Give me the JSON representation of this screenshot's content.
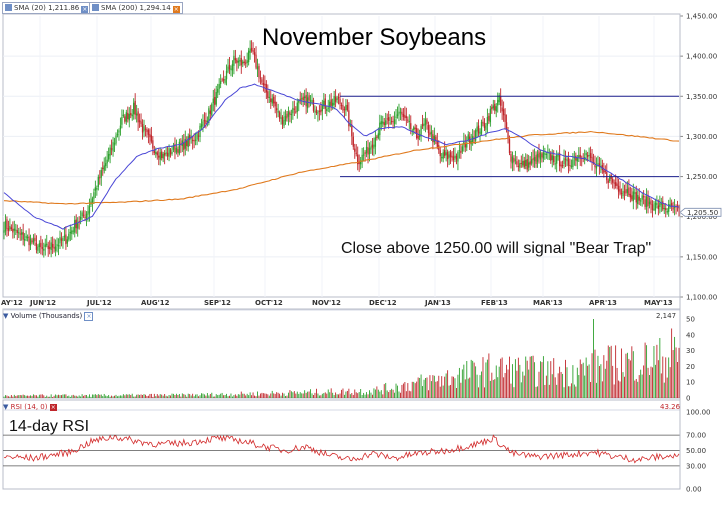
{
  "main_legend": {
    "sma20_label": "SMA (20) 1,211.86",
    "sma200_label": "SMA (200) 1,294.14",
    "sma20_color": "#4a47d6",
    "sma200_color": "#e07a1e"
  },
  "title": "November Soybeans",
  "annotation": "Close above 1250.00 will signal \"Bear Trap\"",
  "last_price_label": "1,205.50",
  "chart_data": [
    {
      "type": "candlestick",
      "title": "November Soybeans",
      "x_tick_labels": [
        "AY'12",
        "JUN'12",
        "JUL'12",
        "AUG'12",
        "SEP'12",
        "OCT'12",
        "NOV'12",
        "DEC'12",
        "JAN'13",
        "FEB'13",
        "MAR'13",
        "APR'13",
        "MAY'13"
      ],
      "y_tick_labels": [
        "1,450.00",
        "1,400.00",
        "1,350.00",
        "1,300.00",
        "1,250.00",
        "1,200.00",
        "1,150.00",
        "1,100.00"
      ],
      "ylim": [
        1100,
        1450
      ],
      "up_color": "#2ea02e",
      "down_color": "#c0262b",
      "close_anchors": [
        [
          0,
          1190
        ],
        [
          10,
          1178
        ],
        [
          18,
          1170
        ],
        [
          26,
          1158
        ],
        [
          34,
          1165
        ],
        [
          42,
          1172
        ],
        [
          48,
          1190
        ],
        [
          56,
          1205
        ],
        [
          62,
          1235
        ],
        [
          72,
          1280
        ],
        [
          80,
          1320
        ],
        [
          88,
          1335
        ],
        [
          94,
          1310
        ],
        [
          100,
          1290
        ],
        [
          108,
          1275
        ],
        [
          116,
          1285
        ],
        [
          122,
          1290
        ],
        [
          130,
          1300
        ],
        [
          138,
          1325
        ],
        [
          144,
          1350
        ],
        [
          150,
          1375
        ],
        [
          156,
          1395
        ],
        [
          162,
          1390
        ],
        [
          168,
          1405
        ],
        [
          172,
          1385
        ],
        [
          176,
          1360
        ],
        [
          182,
          1345
        ],
        [
          188,
          1320
        ],
        [
          194,
          1330
        ],
        [
          200,
          1340
        ],
        [
          206,
          1345
        ],
        [
          212,
          1335
        ],
        [
          220,
          1340
        ],
        [
          226,
          1345
        ],
        [
          232,
          1335
        ],
        [
          236,
          1300
        ],
        [
          240,
          1270
        ],
        [
          246,
          1280
        ],
        [
          252,
          1300
        ],
        [
          256,
          1315
        ],
        [
          262,
          1315
        ],
        [
          268,
          1330
        ],
        [
          274,
          1315
        ],
        [
          280,
          1300
        ],
        [
          286,
          1315
        ],
        [
          292,
          1295
        ],
        [
          296,
          1275
        ],
        [
          302,
          1275
        ],
        [
          308,
          1275
        ],
        [
          314,
          1295
        ],
        [
          320,
          1305
        ],
        [
          326,
          1315
        ],
        [
          330,
          1330
        ],
        [
          336,
          1345
        ],
        [
          340,
          1315
        ],
        [
          344,
          1275
        ],
        [
          350,
          1265
        ],
        [
          356,
          1265
        ],
        [
          364,
          1275
        ],
        [
          370,
          1275
        ],
        [
          376,
          1270
        ],
        [
          382,
          1265
        ],
        [
          388,
          1275
        ],
        [
          394,
          1280
        ],
        [
          400,
          1265
        ],
        [
          406,
          1255
        ],
        [
          412,
          1245
        ],
        [
          418,
          1235
        ],
        [
          424,
          1232
        ],
        [
          428,
          1225
        ],
        [
          434,
          1220
        ],
        [
          440,
          1215
        ],
        [
          446,
          1212
        ],
        [
          452,
          1210
        ],
        [
          458,
          1207
        ]
      ],
      "sma20_anchors": [
        [
          0,
          1230
        ],
        [
          20,
          1200
        ],
        [
          40,
          1185
        ],
        [
          60,
          1200
        ],
        [
          75,
          1245
        ],
        [
          90,
          1275
        ],
        [
          105,
          1285
        ],
        [
          120,
          1290
        ],
        [
          135,
          1310
        ],
        [
          150,
          1345
        ],
        [
          160,
          1360
        ],
        [
          170,
          1365
        ],
        [
          185,
          1355
        ],
        [
          200,
          1345
        ],
        [
          215,
          1340
        ],
        [
          225,
          1335
        ],
        [
          235,
          1315
        ],
        [
          245,
          1300
        ],
        [
          255,
          1310
        ],
        [
          270,
          1312
        ],
        [
          285,
          1300
        ],
        [
          300,
          1290
        ],
        [
          315,
          1295
        ],
        [
          330,
          1305
        ],
        [
          340,
          1310
        ],
        [
          350,
          1300
        ],
        [
          365,
          1282
        ],
        [
          380,
          1276
        ],
        [
          395,
          1272
        ],
        [
          405,
          1262
        ],
        [
          420,
          1245
        ],
        [
          435,
          1228
        ],
        [
          450,
          1214
        ],
        [
          458,
          1212
        ]
      ],
      "sma200_anchors": [
        [
          0,
          1220
        ],
        [
          40,
          1216
        ],
        [
          80,
          1218
        ],
        [
          120,
          1222
        ],
        [
          160,
          1235
        ],
        [
          200,
          1255
        ],
        [
          240,
          1268
        ],
        [
          280,
          1283
        ],
        [
          320,
          1293
        ],
        [
          360,
          1302
        ],
        [
          400,
          1306
        ],
        [
          440,
          1298
        ],
        [
          458,
          1294
        ]
      ],
      "horizontal_lines": [
        1350,
        1250
      ],
      "last_price": 1205.5
    },
    {
      "type": "bar",
      "title": "Volume (Thousands)",
      "y_tick_labels": [
        "50",
        "40",
        "30",
        "20",
        "10",
        "0"
      ],
      "ylim": [
        0,
        50
      ],
      "max_label": "2,147",
      "spike_bars": [
        [
          400,
          50
        ],
        [
          453,
          44
        ],
        [
          456,
          32
        ]
      ],
      "profile_anchors": [
        [
          0,
          1.5
        ],
        [
          120,
          2
        ],
        [
          170,
          3
        ],
        [
          250,
          5
        ],
        [
          290,
          12
        ],
        [
          330,
          20
        ],
        [
          380,
          18
        ],
        [
          420,
          25
        ],
        [
          458,
          28
        ]
      ]
    },
    {
      "type": "line",
      "title": "RSI (14, 0)",
      "y_tick_labels": [
        "100.00",
        "70.00",
        "50.00",
        "30.00",
        "0.00"
      ],
      "ylim": [
        0,
        100
      ],
      "reference_levels": [
        70,
        50,
        30
      ],
      "last_value_label": "43.26",
      "rsi_anchors": [
        [
          0,
          42
        ],
        [
          20,
          40
        ],
        [
          45,
          48
        ],
        [
          60,
          62
        ],
        [
          75,
          68
        ],
        [
          90,
          62
        ],
        [
          105,
          58
        ],
        [
          125,
          60
        ],
        [
          145,
          66
        ],
        [
          160,
          63
        ],
        [
          175,
          56
        ],
        [
          190,
          50
        ],
        [
          205,
          55
        ],
        [
          220,
          44
        ],
        [
          235,
          38
        ],
        [
          250,
          46
        ],
        [
          265,
          40
        ],
        [
          280,
          46
        ],
        [
          300,
          50
        ],
        [
          320,
          58
        ],
        [
          332,
          66
        ],
        [
          345,
          46
        ],
        [
          360,
          42
        ],
        [
          380,
          44
        ],
        [
          400,
          48
        ],
        [
          415,
          42
        ],
        [
          430,
          38
        ],
        [
          445,
          42
        ],
        [
          458,
          43
        ]
      ]
    }
  ],
  "volume_panel": {
    "label": "Volume (Thousands)"
  },
  "rsi_panel": {
    "label": "RSI (14, 0)",
    "caption": "14-day RSI"
  }
}
